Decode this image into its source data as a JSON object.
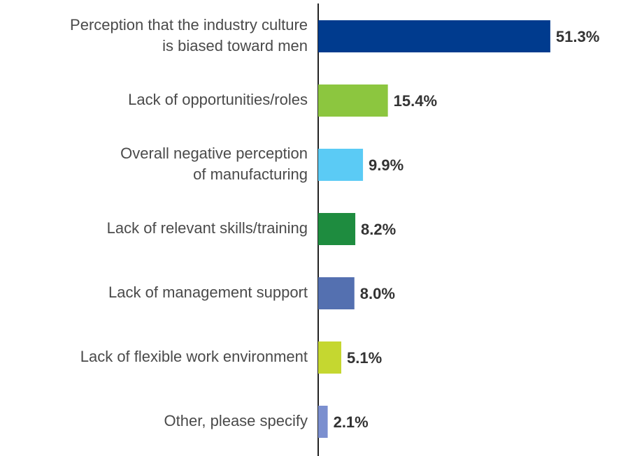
{
  "chart_data": {
    "type": "bar",
    "orientation": "horizontal",
    "categories": [
      "Perception that the industry culture\nis biased toward men",
      "Lack of opportunities/roles",
      "Overall negative perception\nof manufacturing",
      "Lack of relevant skills/training",
      "Lack of management support",
      "Lack of flexible work environment",
      "Other, please specify"
    ],
    "values": [
      51.3,
      15.4,
      9.9,
      8.2,
      8.0,
      5.1,
      2.1
    ],
    "value_labels": [
      "51.3%",
      "15.4%",
      "9.9%",
      "8.2%",
      "8.0%",
      "5.1%",
      "2.1%"
    ],
    "colors": [
      "#003b8e",
      "#8cc63f",
      "#5bcbf5",
      "#1e8c3f",
      "#5470b0",
      "#c5d730",
      "#7b8fcf"
    ]
  }
}
